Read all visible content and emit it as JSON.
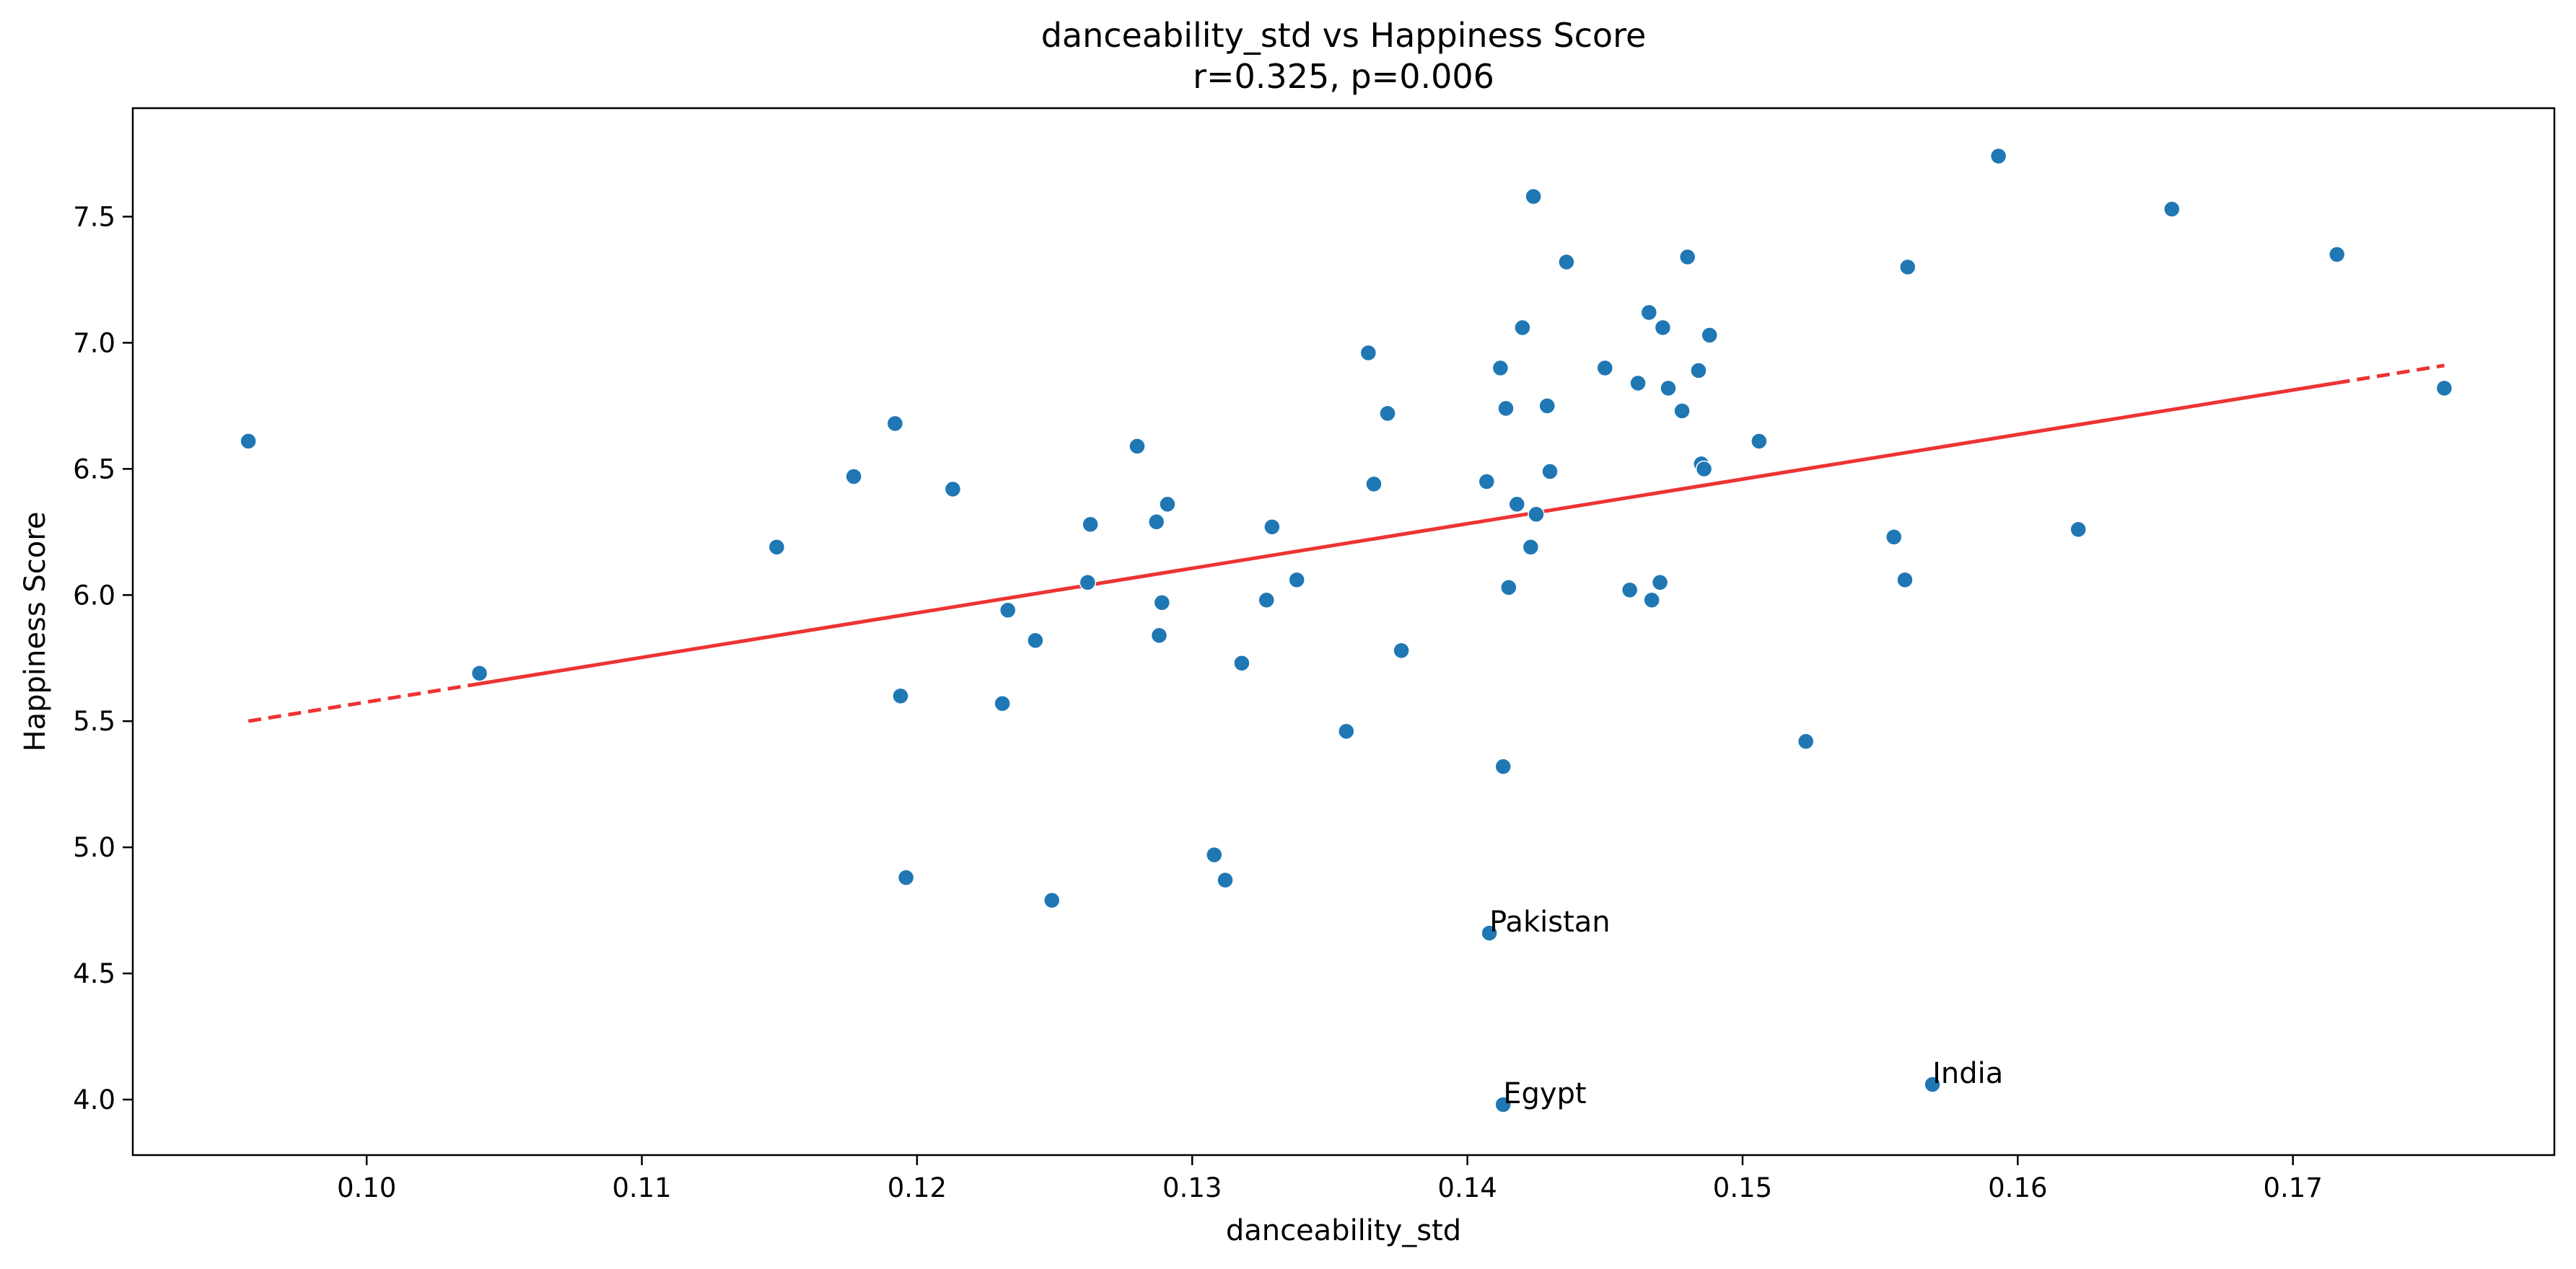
{
  "chart_data": {
    "type": "scatter",
    "title": "danceability_std vs Happiness Score",
    "subtitle": "r=0.325, p=0.006",
    "xlabel": "danceability_std",
    "ylabel": "Happiness Score",
    "xlim": [
      0.0915,
      0.1795
    ],
    "ylim": [
      3.78,
      7.93
    ],
    "xticks": [
      0.1,
      0.11,
      0.12,
      0.13,
      0.14,
      0.15,
      0.16,
      0.17
    ],
    "xtick_labels": [
      "0.10",
      "0.11",
      "0.12",
      "0.13",
      "0.14",
      "0.15",
      "0.16",
      "0.17"
    ],
    "yticks": [
      4.0,
      4.5,
      5.0,
      5.5,
      6.0,
      6.5,
      7.0,
      7.5
    ],
    "ytick_labels": [
      "4.0",
      "4.5",
      "5.0",
      "5.5",
      "6.0",
      "6.5",
      "7.0",
      "7.5"
    ],
    "grid": false,
    "point_color": "#1f77b4",
    "line_color": "#ee3333",
    "regression": {
      "x_start": 0.0957,
      "x_end": 0.1755,
      "y_start": 5.5,
      "y_end": 6.91,
      "solid_from": 0.1041,
      "solid_to": 0.1716
    },
    "points": [
      {
        "x": 0.0957,
        "y": 6.61
      },
      {
        "x": 0.1041,
        "y": 5.69
      },
      {
        "x": 0.1149,
        "y": 6.19
      },
      {
        "x": 0.1177,
        "y": 6.47
      },
      {
        "x": 0.1192,
        "y": 6.68
      },
      {
        "x": 0.1194,
        "y": 5.6
      },
      {
        "x": 0.1196,
        "y": 4.88
      },
      {
        "x": 0.1213,
        "y": 6.42
      },
      {
        "x": 0.1231,
        "y": 5.57
      },
      {
        "x": 0.1233,
        "y": 5.94
      },
      {
        "x": 0.1243,
        "y": 5.82
      },
      {
        "x": 0.1249,
        "y": 4.79
      },
      {
        "x": 0.1262,
        "y": 6.05
      },
      {
        "x": 0.1263,
        "y": 6.28
      },
      {
        "x": 0.128,
        "y": 6.59
      },
      {
        "x": 0.1287,
        "y": 6.29
      },
      {
        "x": 0.1288,
        "y": 5.84
      },
      {
        "x": 0.1289,
        "y": 5.97
      },
      {
        "x": 0.1291,
        "y": 6.36
      },
      {
        "x": 0.1308,
        "y": 4.97
      },
      {
        "x": 0.1312,
        "y": 4.87
      },
      {
        "x": 0.1318,
        "y": 5.73
      },
      {
        "x": 0.1327,
        "y": 5.98
      },
      {
        "x": 0.1329,
        "y": 6.27
      },
      {
        "x": 0.1338,
        "y": 6.06
      },
      {
        "x": 0.1356,
        "y": 5.46
      },
      {
        "x": 0.1364,
        "y": 6.96
      },
      {
        "x": 0.1366,
        "y": 6.44
      },
      {
        "x": 0.1371,
        "y": 6.72
      },
      {
        "x": 0.1376,
        "y": 5.78
      },
      {
        "x": 0.1407,
        "y": 6.45
      },
      {
        "x": 0.1408,
        "y": 4.66,
        "label": "Pakistan"
      },
      {
        "x": 0.1412,
        "y": 6.9
      },
      {
        "x": 0.1413,
        "y": 5.32
      },
      {
        "x": 0.1413,
        "y": 3.98,
        "label": "Egypt"
      },
      {
        "x": 0.1414,
        "y": 6.74
      },
      {
        "x": 0.1415,
        "y": 6.03
      },
      {
        "x": 0.1418,
        "y": 6.36
      },
      {
        "x": 0.142,
        "y": 7.06
      },
      {
        "x": 0.1423,
        "y": 6.19
      },
      {
        "x": 0.1424,
        "y": 7.58
      },
      {
        "x": 0.1425,
        "y": 6.32
      },
      {
        "x": 0.1429,
        "y": 6.75
      },
      {
        "x": 0.143,
        "y": 6.49
      },
      {
        "x": 0.1436,
        "y": 7.32
      },
      {
        "x": 0.145,
        "y": 6.9
      },
      {
        "x": 0.1459,
        "y": 6.02
      },
      {
        "x": 0.1462,
        "y": 6.84
      },
      {
        "x": 0.1466,
        "y": 7.12
      },
      {
        "x": 0.1467,
        "y": 5.98
      },
      {
        "x": 0.147,
        "y": 6.05
      },
      {
        "x": 0.1471,
        "y": 7.06
      },
      {
        "x": 0.1473,
        "y": 6.82
      },
      {
        "x": 0.1478,
        "y": 6.73
      },
      {
        "x": 0.148,
        "y": 7.34
      },
      {
        "x": 0.1484,
        "y": 6.89
      },
      {
        "x": 0.1485,
        "y": 6.52
      },
      {
        "x": 0.1486,
        "y": 6.5
      },
      {
        "x": 0.1488,
        "y": 7.03
      },
      {
        "x": 0.1506,
        "y": 6.61
      },
      {
        "x": 0.1523,
        "y": 5.42
      },
      {
        "x": 0.1555,
        "y": 6.23
      },
      {
        "x": 0.1559,
        "y": 6.06
      },
      {
        "x": 0.156,
        "y": 7.3
      },
      {
        "x": 0.1569,
        "y": 4.06,
        "label": "India"
      },
      {
        "x": 0.1593,
        "y": 7.74
      },
      {
        "x": 0.1622,
        "y": 6.26
      },
      {
        "x": 0.1656,
        "y": 7.53
      },
      {
        "x": 0.1716,
        "y": 7.35
      },
      {
        "x": 0.1755,
        "y": 6.82
      }
    ]
  }
}
